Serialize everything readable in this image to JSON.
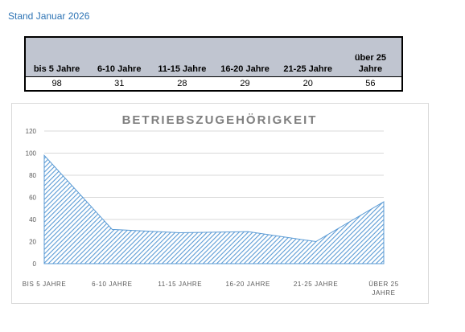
{
  "header": {
    "stand": "Stand Januar 2026"
  },
  "table": {
    "headers": [
      "bis 5 Jahre",
      "6-10 Jahre",
      "11-15 Jahre",
      "16-20 Jahre",
      "21-25 Jahre",
      "über 25 Jahre"
    ],
    "values": [
      "98",
      "31",
      "28",
      "29",
      "20",
      "56"
    ]
  },
  "chart_data": {
    "type": "area",
    "title": "BETRIEBSZUGEHÖRIGKEIT",
    "categories": [
      "BIS 5 JAHRE",
      "6-10 JAHRE",
      "11-15 JAHRE",
      "16-20 JAHRE",
      "21-25 JAHRE",
      "ÜBER 25 JAHRE"
    ],
    "values": [
      98,
      31,
      28,
      29,
      20,
      56
    ],
    "ylim": [
      0,
      120
    ],
    "yticks": [
      0,
      20,
      40,
      60,
      80,
      100,
      120
    ],
    "grid": true,
    "legend": "none",
    "color": "#5b9bd5"
  }
}
